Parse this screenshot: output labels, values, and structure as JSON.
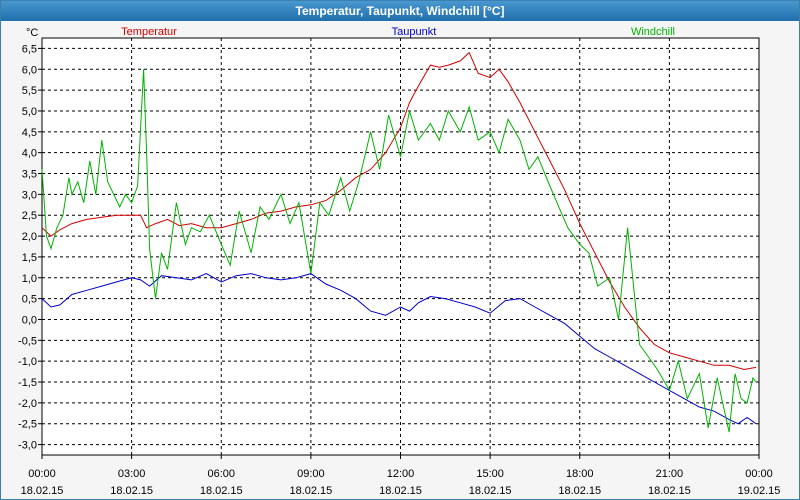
{
  "window": {
    "title": "Temperatur, Taupunkt, Windchill [°C]"
  },
  "colors": {
    "temperatur": "#d40000",
    "taupunkt": "#0000c8",
    "windchill": "#00b400",
    "grid": "#000000",
    "plot_bg": "#ffffff"
  },
  "chart_data": {
    "type": "line",
    "title": "Temperatur, Taupunkt, Windchill [°C]",
    "ylabel": "°C",
    "ylim": [
      -3.25,
      6.75
    ],
    "yticks": [
      "6,5",
      "6,0",
      "5,5",
      "5,0",
      "4,5",
      "4,0",
      "3,5",
      "3,0",
      "2,5",
      "2,0",
      "1,5",
      "1,0",
      "0,5",
      "0,0",
      "-0,5",
      "-1,0",
      "-1,5",
      "-2,0",
      "-2,5",
      "-3,0"
    ],
    "ytick_values": [
      6.5,
      6.0,
      5.5,
      5.0,
      4.5,
      4.0,
      3.5,
      3.0,
      2.5,
      2.0,
      1.5,
      1.0,
      0.5,
      0.0,
      -0.5,
      -1.0,
      -1.5,
      -2.0,
      -2.5,
      -3.0
    ],
    "xlim": [
      0,
      24
    ],
    "xticks": [
      {
        "time": "00:00",
        "date": "18.02.15",
        "h": 0
      },
      {
        "time": "03:00",
        "date": "18.02.15",
        "h": 3
      },
      {
        "time": "06:00",
        "date": "18.02.15",
        "h": 6
      },
      {
        "time": "09:00",
        "date": "18.02.15",
        "h": 9
      },
      {
        "time": "12:00",
        "date": "18.02.15",
        "h": 12
      },
      {
        "time": "15:00",
        "date": "18.02.15",
        "h": 15
      },
      {
        "time": "18:00",
        "date": "18.02.15",
        "h": 18
      },
      {
        "time": "21:00",
        "date": "18.02.15",
        "h": 21
      },
      {
        "time": "00:00",
        "date": "19.02.15",
        "h": 24
      }
    ],
    "grid": true,
    "series": [
      {
        "name": "Temperatur",
        "color": "#d40000",
        "x": [
          0,
          0.3,
          0.6,
          1.0,
          1.5,
          2.0,
          2.5,
          3.0,
          3.3,
          3.5,
          3.8,
          4.2,
          4.6,
          5.0,
          5.5,
          6.0,
          6.5,
          7.0,
          7.5,
          8.0,
          8.5,
          9.0,
          9.5,
          10.0,
          10.5,
          11.0,
          11.5,
          12.0,
          12.3,
          12.6,
          13.0,
          13.3,
          13.6,
          14.0,
          14.3,
          14.6,
          15.0,
          15.3,
          15.6,
          16.0,
          16.5,
          17.0,
          17.5,
          18.0,
          18.5,
          19.0,
          19.5,
          20.0,
          20.5,
          21.0,
          21.5,
          22.0,
          22.5,
          23.0,
          23.5,
          23.9
        ],
        "values": [
          2.2,
          2.0,
          2.15,
          2.3,
          2.4,
          2.45,
          2.5,
          2.5,
          2.5,
          2.2,
          2.3,
          2.4,
          2.25,
          2.3,
          2.2,
          2.2,
          2.3,
          2.4,
          2.55,
          2.6,
          2.7,
          2.75,
          2.85,
          3.1,
          3.4,
          3.6,
          4.0,
          4.6,
          5.2,
          5.6,
          6.1,
          6.05,
          6.1,
          6.2,
          6.4,
          5.9,
          5.8,
          6.0,
          5.7,
          5.2,
          4.5,
          3.8,
          3.1,
          2.3,
          1.6,
          0.9,
          0.3,
          -0.2,
          -0.6,
          -0.8,
          -0.9,
          -1.0,
          -1.1,
          -1.1,
          -1.2,
          -1.15
        ]
      },
      {
        "name": "Taupunkt",
        "color": "#0000c8",
        "x": [
          0,
          0.3,
          0.6,
          1.0,
          1.5,
          2.0,
          2.5,
          3.0,
          3.3,
          3.6,
          4.0,
          4.5,
          5.0,
          5.5,
          6.0,
          6.5,
          7.0,
          7.5,
          8.0,
          8.5,
          9.0,
          9.5,
          10.0,
          10.5,
          11.0,
          11.5,
          12.0,
          12.3,
          12.6,
          13.0,
          13.5,
          14.0,
          14.5,
          15.0,
          15.5,
          16.0,
          16.5,
          17.0,
          17.5,
          18.0,
          18.5,
          19.0,
          19.5,
          20.0,
          20.5,
          21.0,
          21.5,
          22.0,
          22.5,
          23.0,
          23.3,
          23.6,
          23.9
        ],
        "values": [
          0.5,
          0.3,
          0.35,
          0.6,
          0.7,
          0.8,
          0.9,
          1.0,
          0.95,
          0.8,
          1.05,
          1.0,
          0.95,
          1.1,
          0.9,
          1.05,
          1.1,
          1.0,
          0.95,
          1.0,
          1.1,
          0.85,
          0.7,
          0.5,
          0.2,
          0.1,
          0.3,
          0.2,
          0.4,
          0.55,
          0.5,
          0.4,
          0.3,
          0.15,
          0.45,
          0.5,
          0.3,
          0.1,
          -0.1,
          -0.4,
          -0.7,
          -0.9,
          -1.1,
          -1.3,
          -1.5,
          -1.7,
          -1.9,
          -2.1,
          -2.2,
          -2.4,
          -2.5,
          -2.35,
          -2.5
        ]
      },
      {
        "name": "Windchill",
        "color": "#00b400",
        "x": [
          0,
          0.15,
          0.3,
          0.5,
          0.7,
          0.9,
          1.0,
          1.2,
          1.4,
          1.6,
          1.8,
          2.0,
          2.2,
          2.4,
          2.6,
          2.8,
          3.0,
          3.2,
          3.4,
          3.5,
          3.6,
          3.7,
          3.8,
          4.0,
          4.2,
          4.5,
          4.8,
          5.0,
          5.3,
          5.6,
          6.0,
          6.3,
          6.6,
          7.0,
          7.3,
          7.6,
          8.0,
          8.3,
          8.6,
          9.0,
          9.3,
          9.6,
          10.0,
          10.3,
          10.6,
          11.0,
          11.3,
          11.6,
          12.0,
          12.3,
          12.6,
          13.0,
          13.3,
          13.6,
          14.0,
          14.3,
          14.6,
          15.0,
          15.3,
          15.6,
          16.0,
          16.3,
          16.6,
          17.0,
          17.3,
          17.6,
          18.0,
          18.3,
          18.6,
          19.0,
          19.3,
          19.6,
          20.0,
          20.3,
          20.6,
          21.0,
          21.3,
          21.6,
          22.0,
          22.3,
          22.6,
          23.0,
          23.2,
          23.4,
          23.6,
          23.8,
          23.9
        ],
        "values": [
          3.6,
          2.0,
          1.7,
          2.2,
          2.5,
          3.4,
          3.0,
          3.3,
          2.8,
          3.8,
          3.0,
          4.3,
          3.3,
          3.0,
          2.7,
          3.0,
          2.8,
          3.2,
          6.0,
          4.0,
          1.7,
          1.1,
          0.5,
          1.6,
          1.2,
          2.8,
          1.8,
          2.2,
          2.1,
          2.5,
          1.8,
          1.3,
          2.6,
          1.6,
          2.7,
          2.4,
          3.0,
          2.3,
          2.8,
          1.1,
          2.8,
          2.5,
          3.4,
          2.6,
          3.3,
          4.5,
          3.6,
          4.9,
          3.9,
          5.0,
          4.3,
          4.7,
          4.3,
          5.0,
          4.5,
          5.1,
          4.3,
          4.5,
          4.0,
          4.8,
          4.3,
          3.6,
          3.9,
          3.2,
          2.7,
          2.2,
          1.8,
          1.6,
          0.8,
          1.0,
          0.0,
          2.2,
          -0.6,
          -0.9,
          -1.2,
          -1.7,
          -1.0,
          -1.9,
          -1.3,
          -2.6,
          -1.4,
          -2.7,
          -1.3,
          -1.9,
          -2.0,
          -1.4,
          -1.5
        ]
      }
    ]
  }
}
